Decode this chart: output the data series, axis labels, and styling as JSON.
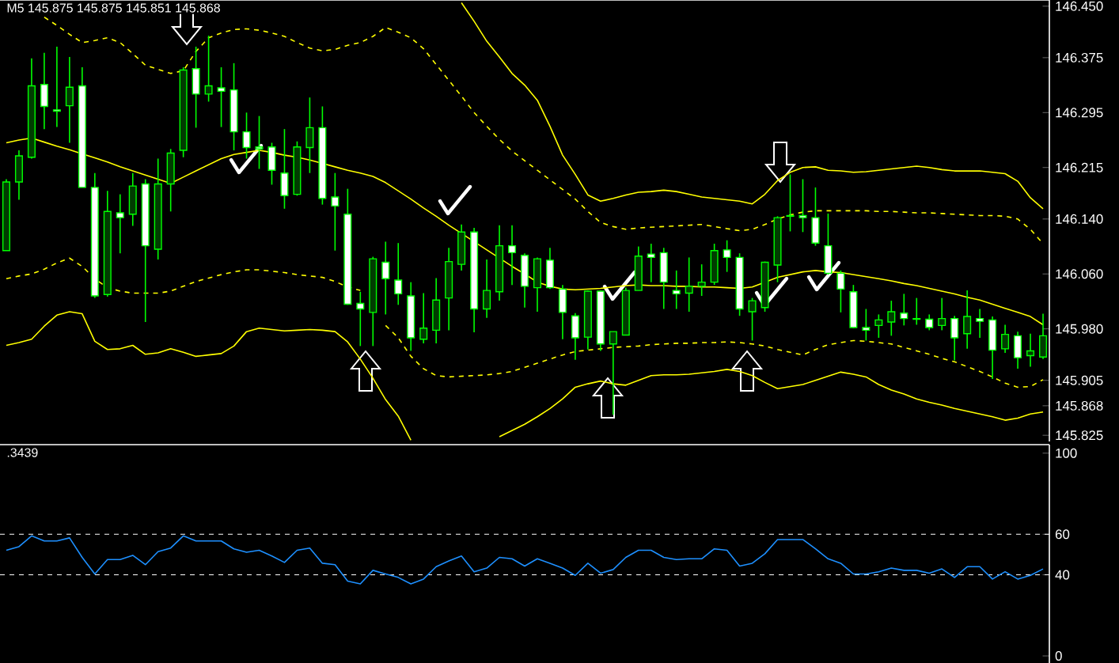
{
  "chart_data": [
    {
      "type": "candlestick",
      "color": "#00ff00",
      "tick_labels": "y",
      "annotations": [
        "M5  145.875 145.875 145.851 145.868"
      ],
      "ylim": [
        145.816,
        146.459
      ],
      "yticks": [
        {
          "value": 146.45,
          "label": "146.450"
        },
        146.375,
        146.295,
        146.215,
        {
          "value": 146.14,
          "label": "146.140"
        },
        {
          "value": 146.06,
          "label": "146.060"
        },
        {
          "value": 145.98,
          "label": "145.980"
        },
        145.905,
        145.868,
        145.825
      ],
      "categories": [
        null,
        null,
        null,
        null,
        null,
        null,
        null,
        null,
        null,
        null,
        null,
        null,
        null,
        null,
        null,
        null,
        null,
        null,
        null,
        null,
        null,
        null,
        null,
        null,
        null,
        null,
        null,
        null,
        null,
        null,
        null,
        null,
        null,
        null,
        null,
        null,
        null,
        null,
        null,
        null,
        null,
        null,
        null,
        null,
        null,
        null,
        null,
        null,
        null,
        null,
        null,
        null,
        null,
        null,
        null,
        null,
        null,
        null,
        null,
        null,
        null,
        null,
        null,
        null,
        null,
        null,
        null,
        null,
        null,
        null,
        null,
        null,
        null,
        null,
        null,
        null,
        null,
        null,
        null,
        null,
        null,
        null,
        null
      ],
      "ohlc": [
        [
          146.094,
          146.198,
          146.094,
          146.194
        ],
        [
          146.194,
          146.24,
          146.168,
          146.232
        ],
        [
          146.23,
          146.374,
          146.228,
          146.334
        ],
        [
          146.336,
          146.382,
          146.271,
          146.304
        ],
        [
          146.299,
          146.391,
          146.274,
          146.297
        ],
        [
          146.305,
          146.376,
          146.251,
          146.332
        ],
        [
          146.334,
          146.361,
          146.186,
          146.186
        ],
        [
          146.186,
          146.207,
          146.025,
          146.028
        ],
        [
          146.03,
          146.181,
          146.027,
          146.151
        ],
        [
          146.149,
          146.176,
          146.09,
          146.142
        ],
        [
          146.147,
          146.207,
          146.13,
          146.188
        ],
        [
          146.191,
          146.198,
          145.99,
          146.101
        ],
        [
          146.096,
          146.228,
          146.081,
          146.191
        ],
        [
          146.191,
          146.242,
          146.151,
          146.236
        ],
        [
          146.24,
          146.361,
          146.23,
          146.357
        ],
        [
          146.359,
          146.391,
          146.273,
          146.322
        ],
        [
          146.322,
          146.407,
          146.311,
          146.334
        ],
        [
          146.331,
          146.361,
          146.274,
          146.326
        ],
        [
          146.328,
          146.367,
          146.24,
          146.267
        ],
        [
          146.267,
          146.295,
          146.228,
          146.244
        ],
        [
          146.245,
          146.29,
          146.213,
          146.242
        ],
        [
          146.245,
          146.251,
          146.19,
          146.211
        ],
        [
          146.207,
          146.271,
          146.155,
          146.174
        ],
        [
          146.176,
          146.253,
          146.174,
          146.245
        ],
        [
          146.244,
          146.317,
          146.207,
          146.273
        ],
        [
          146.273,
          146.304,
          146.161,
          146.17
        ],
        [
          146.172,
          146.207,
          146.094,
          146.159
        ],
        [
          146.147,
          146.184,
          146.015,
          146.016
        ],
        [
          146.017,
          146.034,
          145.955,
          146.009
        ],
        [
          146.004,
          146.085,
          145.955,
          146.082
        ],
        [
          146.077,
          146.107,
          146.001,
          146.053
        ],
        [
          146.051,
          146.105,
          146.015,
          146.031
        ],
        [
          146.028,
          146.048,
          145.948,
          145.967
        ],
        [
          145.965,
          146.032,
          145.959,
          145.981
        ],
        [
          145.978,
          146.054,
          145.959,
          146.022
        ],
        [
          146.025,
          146.098,
          145.978,
          146.078
        ],
        [
          146.074,
          146.132,
          146.065,
          146.121
        ],
        [
          146.121,
          146.127,
          145.975,
          146.009
        ],
        [
          146.009,
          146.081,
          145.996,
          146.036
        ],
        [
          146.034,
          146.131,
          146.021,
          146.101
        ],
        [
          146.101,
          146.131,
          146.044,
          146.091
        ],
        [
          146.087,
          146.09,
          146.011,
          146.042
        ],
        [
          146.04,
          146.084,
          146.005,
          146.082
        ],
        [
          146.08,
          146.098,
          146.038,
          146.04
        ],
        [
          146.038,
          146.044,
          145.965,
          146.004
        ],
        [
          145.999,
          146.003,
          145.935,
          145.967
        ],
        [
          145.968,
          146.036,
          145.95,
          146.035
        ],
        [
          146.035,
          146.036,
          145.948,
          145.958
        ],
        [
          145.958,
          145.976,
          145.855,
          145.976
        ],
        [
          145.971,
          146.04,
          145.971,
          146.036
        ],
        [
          146.036,
          146.1,
          146.036,
          146.086
        ],
        [
          146.089,
          146.104,
          146.048,
          146.084
        ],
        [
          146.091,
          146.098,
          146.009,
          146.048
        ],
        [
          146.036,
          146.065,
          146.009,
          146.031
        ],
        [
          146.032,
          146.084,
          146.005,
          146.042
        ],
        [
          146.042,
          146.074,
          146.028,
          146.048
        ],
        [
          146.048,
          146.104,
          146.044,
          146.094
        ],
        [
          146.095,
          146.109,
          146.063,
          146.084
        ],
        [
          146.084,
          146.09,
          145.999,
          146.009
        ],
        [
          146.005,
          146.025,
          145.963,
          146.021
        ],
        [
          146.011,
          146.078,
          146.005,
          146.077
        ],
        [
          146.073,
          146.144,
          146.048,
          146.142
        ],
        [
          146.145,
          146.205,
          146.122,
          146.144
        ],
        [
          146.145,
          146.198,
          146.121,
          146.142
        ],
        [
          146.142,
          146.186,
          146.101,
          146.105
        ],
        [
          146.101,
          146.148,
          146.059,
          146.061
        ],
        [
          146.061,
          146.065,
          146.004,
          146.038
        ],
        [
          146.034,
          146.044,
          145.981,
          145.982
        ],
        [
          145.982,
          146.009,
          145.963,
          145.978
        ],
        [
          145.985,
          146.001,
          145.967,
          145.993
        ],
        [
          145.99,
          146.021,
          145.97,
          146.005
        ],
        [
          146.003,
          146.031,
          145.985,
          145.995
        ],
        [
          145.995,
          146.025,
          145.986,
          145.994
        ],
        [
          145.994,
          146.001,
          145.978,
          145.982
        ],
        [
          145.985,
          146.025,
          145.978,
          145.995
        ],
        [
          145.995,
          145.999,
          145.934,
          145.967
        ],
        [
          145.973,
          146.036,
          145.951,
          145.998
        ],
        [
          145.995,
          146.009,
          145.967,
          145.991
        ],
        [
          145.993,
          145.998,
          145.907,
          145.949
        ],
        [
          145.951,
          145.986,
          145.945,
          145.972
        ],
        [
          145.97,
          145.976,
          145.922,
          145.938
        ],
        [
          145.941,
          145.973,
          145.925,
          145.948
        ],
        [
          145.939,
          146.002,
          145.936,
          145.97
        ]
      ],
      "series": [
        {
          "type": "line",
          "color": "#ffff00",
          "line_style": "solid",
          "values": [
            146.251,
            146.255,
            146.258,
            146.252,
            146.246,
            146.241,
            146.235,
            146.229,
            146.223,
            146.216,
            146.21,
            146.204,
            146.198,
            146.192,
            146.201,
            146.21,
            146.219,
            146.228,
            146.234,
            146.237,
            146.24,
            146.237,
            146.233,
            146.23,
            146.226,
            146.221,
            146.216,
            146.211,
            146.207,
            146.202,
            146.193,
            146.181,
            146.169,
            146.156,
            146.144,
            146.131,
            146.119,
            146.107,
            146.095,
            146.083,
            146.071,
            146.06,
            146.048,
            146.042,
            146.038,
            146.037,
            146.038,
            146.039,
            146.041,
            146.043,
            146.044,
            146.043,
            146.043,
            146.042,
            146.042,
            146.041,
            146.041,
            146.04,
            146.039,
            146.041,
            146.048,
            146.055,
            146.059,
            146.063,
            146.065,
            146.063,
            146.062,
            146.059,
            146.056,
            146.053,
            146.05,
            146.046,
            146.043,
            146.039,
            146.035,
            146.031,
            146.026,
            146.022,
            146.016,
            146.01,
            146.004,
            145.998,
            145.986
          ]
        },
        {
          "type": "line",
          "color": "#ffff00",
          "line_style": "dashed",
          "values": [
            null,
            null,
            null,
            146.434,
            146.422,
            146.409,
            146.397,
            146.4,
            146.404,
            146.397,
            146.381,
            146.364,
            146.358,
            146.352,
            146.356,
            146.384,
            146.404,
            146.411,
            146.416,
            146.417,
            146.415,
            146.411,
            146.406,
            146.397,
            146.389,
            146.385,
            146.387,
            146.393,
            146.397,
            146.406,
            146.419,
            146.412,
            146.404,
            146.388,
            146.365,
            146.342,
            146.319,
            146.295,
            146.275,
            146.256,
            146.239,
            146.225,
            146.211,
            146.197,
            146.183,
            146.169,
            146.151,
            146.135,
            146.129,
            146.125,
            146.127,
            146.128,
            146.129,
            146.13,
            146.131,
            146.132,
            146.129,
            146.126,
            146.123,
            146.125,
            146.132,
            146.14,
            146.146,
            146.15,
            146.152,
            146.152,
            146.152,
            146.152,
            146.152,
            146.151,
            146.151,
            146.15,
            146.149,
            146.149,
            146.148,
            146.147,
            146.146,
            146.145,
            146.145,
            146.144,
            146.14,
            146.125,
            146.104
          ]
        },
        {
          "type": "line",
          "color": "#ffff00",
          "line_style": "dashed",
          "values": [
            146.053,
            146.057,
            146.06,
            146.067,
            146.076,
            146.083,
            146.071,
            146.053,
            146.04,
            146.035,
            146.032,
            146.032,
            146.032,
            146.035,
            146.042,
            146.049,
            146.054,
            146.059,
            146.063,
            146.066,
            146.066,
            146.064,
            146.062,
            146.059,
            146.057,
            146.055,
            146.049,
            146.041,
            146.036,
            null,
            145.985,
            145.967,
            145.94,
            145.922,
            145.912,
            145.91,
            145.911,
            145.912,
            145.913,
            145.915,
            145.918,
            145.924,
            145.93,
            145.936,
            145.942,
            145.947,
            145.949,
            145.951,
            145.953,
            145.954,
            145.955,
            145.957,
            145.958,
            145.959,
            145.959,
            145.96,
            145.96,
            145.961,
            145.96,
            145.958,
            145.955,
            145.95,
            145.946,
            145.942,
            145.95,
            145.957,
            145.96,
            145.963,
            145.962,
            145.96,
            145.958,
            145.953,
            145.948,
            145.943,
            145.937,
            145.932,
            145.925,
            145.918,
            145.91,
            145.901,
            145.895,
            145.896,
            145.906
          ]
        },
        {
          "type": "line",
          "color": "#ffff00",
          "line_style": "solid",
          "values": [
            145.956,
            145.96,
            145.965,
            145.984,
            146.0,
            146.005,
            146.002,
            145.962,
            145.95,
            145.951,
            145.956,
            145.943,
            145.945,
            145.951,
            145.946,
            145.94,
            145.942,
            145.944,
            145.955,
            145.976,
            145.981,
            145.979,
            145.977,
            145.978,
            145.979,
            145.978,
            145.976,
            145.961,
            145.936,
            145.908,
            145.877,
            145.853,
            145.818,
            null,
            null,
            null,
            null,
            null,
            null,
            145.823,
            145.832,
            145.841,
            145.852,
            145.864,
            145.878,
            145.895,
            145.9,
            145.904,
            145.9,
            145.898,
            145.905,
            145.912,
            145.913,
            145.913,
            145.914,
            145.916,
            145.918,
            145.921,
            145.918,
            145.912,
            145.902,
            145.893,
            145.896,
            145.899,
            145.905,
            145.911,
            145.917,
            145.914,
            145.91,
            145.899,
            145.891,
            145.885,
            145.878,
            145.873,
            145.869,
            145.864,
            145.86,
            145.856,
            145.852,
            145.847,
            145.85,
            145.856,
            145.859
          ]
        },
        {
          "type": "line",
          "color": "#ffff00",
          "line_style": "solid",
          "values": [
            null,
            null,
            null,
            null,
            null,
            null,
            null,
            null,
            null,
            null,
            null,
            null,
            null,
            null,
            null,
            null,
            null,
            null,
            null,
            null,
            null,
            null,
            null,
            null,
            null,
            null,
            null,
            null,
            null,
            null,
            null,
            null,
            null,
            null,
            null,
            null,
            146.455,
            146.428,
            146.399,
            146.376,
            146.352,
            146.335,
            146.313,
            146.275,
            146.233,
            146.205,
            146.175,
            146.166,
            146.17,
            146.175,
            146.179,
            146.18,
            146.182,
            146.18,
            146.176,
            146.172,
            146.17,
            146.168,
            146.166,
            146.162,
            146.176,
            146.196,
            146.208,
            146.215,
            146.216,
            146.211,
            146.21,
            146.208,
            146.209,
            146.211,
            146.213,
            146.215,
            146.217,
            146.215,
            146.212,
            146.21,
            146.21,
            146.21,
            146.208,
            146.206,
            146.195,
            146.171,
            146.155
          ]
        }
      ]
    },
    {
      "type": "line",
      "color": "#1e90ff",
      "tick_labels": "y",
      "annotations": [
        ".3439"
      ],
      "ylim": [
        -3.5,
        104.2
      ],
      "yticks": [
        0,
        40,
        60,
        100
      ],
      "ref_lines": [
        {
          "axis": "y",
          "value": 60,
          "color": "#ffffff",
          "line_style": "dashed"
        },
        {
          "axis": "y",
          "value": 40,
          "color": "#ffffff",
          "line_style": "dashed"
        }
      ],
      "categories": [
        null,
        null,
        null,
        null,
        null,
        null,
        null,
        null,
        null,
        null,
        null,
        null,
        null,
        null,
        null,
        null,
        null,
        null,
        null,
        null,
        null,
        null,
        null,
        null,
        null,
        null,
        null,
        null,
        null,
        null,
        null,
        null,
        null,
        null,
        null,
        null,
        null,
        null,
        null,
        null,
        null,
        null,
        null,
        null,
        null,
        null,
        null,
        null,
        null,
        null,
        null,
        null,
        null,
        null,
        null,
        null,
        null,
        null,
        null,
        null,
        null,
        null,
        null,
        null,
        null,
        null,
        null,
        null,
        null,
        null,
        null,
        null,
        null,
        null,
        null,
        null,
        null,
        null,
        null,
        null,
        null,
        null,
        null
      ],
      "values": [
        52.1,
        53.9,
        59.2,
        56.7,
        56.7,
        58.2,
        48.6,
        40.4,
        47.5,
        47.5,
        49.6,
        45.0,
        51.4,
        53.2,
        59.2,
        56.7,
        56.7,
        56.7,
        52.8,
        51.1,
        52.1,
        49.3,
        46.1,
        52.1,
        53.2,
        45.7,
        45.0,
        36.9,
        35.5,
        42.2,
        40.4,
        38.7,
        35.5,
        37.9,
        44.0,
        46.8,
        49.3,
        41.5,
        43.3,
        48.6,
        47.9,
        44.3,
        47.9,
        45.7,
        43.3,
        39.7,
        45.7,
        40.8,
        42.6,
        48.6,
        52.1,
        52.1,
        48.6,
        47.5,
        47.9,
        47.9,
        52.8,
        52.1,
        44.3,
        45.7,
        50.4,
        57.4,
        57.4,
        57.4,
        52.8,
        47.9,
        45.7,
        40.4,
        40.4,
        41.5,
        43.3,
        42.2,
        42.2,
        40.8,
        42.9,
        38.7,
        44.0,
        44.0,
        37.9,
        41.5,
        37.9,
        39.7,
        42.9
      ]
    }
  ]
}
